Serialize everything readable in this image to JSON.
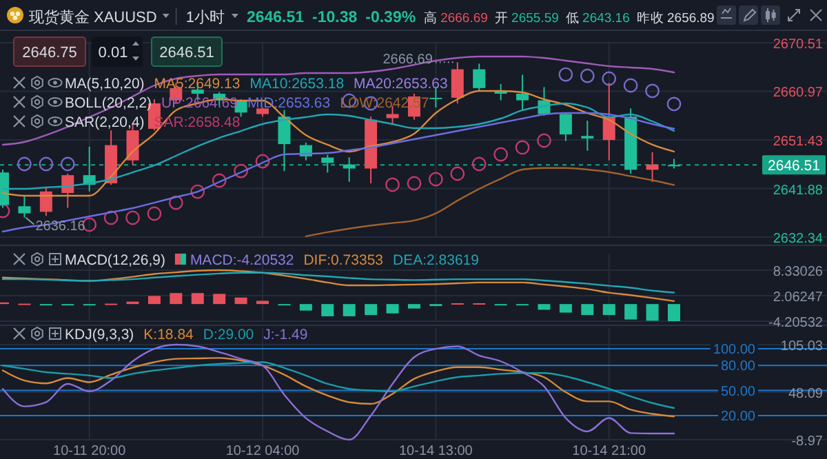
{
  "chart_data": [
    {
      "type": "candlestick",
      "title": "现货黄金",
      "subtitle": "XAUUSD",
      "annotations": [
        "1小时",
        "2646.51",
        "-10.38",
        "-0.39%",
        "高 2666.69",
        "开 2655.59",
        "低 2643.16",
        "昨收 2656.89",
        "2646.75",
        "0.01",
        "2646.51",
        "MA(5,10,20)",
        "MA20:2653.63",
        "BOLL(20,2,2)",
        "SAR(2,20,4)",
        {
          "text": "2666.69",
          "y": 2666.69
        },
        {
          "text": "2636.16",
          "y": 2636.16
        }
      ],
      "categories": [
        null,
        null,
        null,
        null,
        null,
        null,
        null,
        null,
        null,
        null,
        null,
        null,
        null,
        null,
        null,
        null,
        null,
        null,
        null,
        null,
        null,
        null,
        null,
        null,
        null,
        null,
        null,
        null,
        null,
        null,
        null,
        null
      ],
      "ohlc": [
        [
          2645.03,
          2645.56,
          2638.1,
          2638.63
        ],
        [
          2638.4,
          2640.5,
          2636.16,
          2637.0
        ],
        [
          2637.3,
          2642.1,
          2636.5,
          2641.3
        ],
        [
          2641.0,
          2644.8,
          2638.1,
          2644.5
        ],
        [
          2644.5,
          2650.1,
          2641.3,
          2642.6
        ],
        [
          2642.9,
          2653.3,
          2642.6,
          2650.4
        ],
        [
          2647.4,
          2654.6,
          2646.6,
          2653.3
        ],
        [
          2653.6,
          2659.4,
          2653.3,
          2658.6
        ],
        [
          2659.2,
          2662.6,
          2658.6,
          2661.6
        ],
        [
          2661.3,
          2662.6,
          2659.2,
          2660.5
        ],
        [
          2660.5,
          2660.8,
          2658.1,
          2659.2
        ],
        [
          2659.2,
          2659.4,
          2655.96,
          2656.8
        ],
        [
          2656.5,
          2657.8,
          2656.0,
          2657.6
        ],
        [
          2656.0,
          2657.3,
          2645.3,
          2650.6
        ],
        [
          2650.4,
          2650.9,
          2647.4,
          2648.2
        ],
        [
          2647.96,
          2648.5,
          2645.0,
          2646.9
        ],
        [
          2646.6,
          2648.0,
          2643.2,
          2645.8
        ],
        [
          2645.8,
          2656.0,
          2642.9,
          2655.4
        ],
        [
          2655.7,
          2658.1,
          2654.6,
          2656.5
        ],
        [
          2656.0,
          2660.5,
          2655.4,
          2659.96
        ],
        [
          2659.7,
          2661.8,
          2657.8,
          2659.5
        ],
        [
          2659.7,
          2666.69,
          2658.6,
          2665.3
        ],
        [
          2665.3,
          2666.4,
          2661.0,
          2661.6
        ],
        [
          2661.0,
          2662.4,
          2659.2,
          2660.5
        ],
        [
          2660.5,
          2664.2,
          2657.3,
          2659.2
        ],
        [
          2659.2,
          2661.8,
          2656.2,
          2656.5
        ],
        [
          2656.5,
          2656.8,
          2651.2,
          2652.5
        ],
        [
          2652.2,
          2655.2,
          2649.3,
          2651.7
        ],
        [
          2651.4,
          2662.6,
          2647.4,
          2656.0
        ],
        [
          2656.0,
          2657.6,
          2644.8,
          2645.56
        ],
        [
          2645.56,
          2649.0,
          2643.16,
          2646.6
        ],
        [
          2646.51,
          2647.7,
          2645.8,
          2646.51
        ]
      ],
      "colors": [
        "#1fbf9a",
        "#1fbf9a",
        "#e8505b",
        "#e8505b",
        "#1fbf9a",
        "#e8505b",
        "#e8505b",
        "#e8505b",
        "#e8505b",
        "#1fbf9a",
        "#1fbf9a",
        "#1fbf9a",
        "#e8505b",
        "#1fbf9a",
        "#1fbf9a",
        "#1fbf9a",
        "#1fbf9a",
        "#e8505b",
        "#e8505b",
        "#e8505b",
        "#1fbf9a",
        "#e8505b",
        "#1fbf9a",
        "#1fbf9a",
        "#1fbf9a",
        "#1fbf9a",
        "#1fbf9a",
        "#1fbf9a",
        "#e8505b",
        "#1fbf9a",
        "#e8505b",
        "#1fbf9a"
      ],
      "series": [
        {
          "name": "MA5:2649.13",
          "type": "line",
          "color": "#d98a3a",
          "values": [
            2641.0,
            2640.46,
            2640.46,
            2640.46,
            2640.46,
            2644.25,
            2649.12,
            2652.64,
            2657.25,
            2658.6,
            2659.41,
            2659.14,
            2659.14,
            2655.89,
            2652.37,
            2650.48,
            2649.12,
            2650.21,
            2651.02,
            2652.64,
            2656.7,
            2659.41,
            2661.04,
            2661.04,
            2660.77,
            2659.41,
            2658.33,
            2656.7,
            2655.35,
            2652.64,
            2650.48,
            2649.13
          ]
        },
        {
          "name": "MA10:2653.18",
          "type": "line",
          "color": "#22a6b3",
          "values": [
            2641.81,
            2641.81,
            2642.09,
            2642.36,
            2642.9,
            2643.71,
            2645.06,
            2646.42,
            2648.31,
            2650.2,
            2651.83,
            2653.18,
            2654.54,
            2655.35,
            2655.89,
            2656.43,
            2656.16,
            2655.35,
            2654.54,
            2653.73,
            2653.73,
            2653.99,
            2654.54,
            2655.62,
            2657.25,
            2658.06,
            2658.6,
            2657.79,
            2655.89,
            2656.43,
            2655.08,
            2653.18
          ]
        },
        {
          "name": "UP:2664.69",
          "type": "line",
          "color": "#a05bb8",
          "values": [
            2650.48,
            2651.02,
            2652.37,
            2653.99,
            2655.89,
            2657.79,
            2659.95,
            2662.12,
            2663.47,
            2664.01,
            2664.28,
            2664.28,
            2664.28,
            2664.28,
            2664.55,
            2664.55,
            2664.55,
            2664.82,
            2665.37,
            2666.18,
            2666.99,
            2667.53,
            2667.8,
            2667.8,
            2667.8,
            2667.53,
            2666.99,
            2666.45,
            2665.91,
            2665.64,
            2665.37,
            2664.69
          ]
        },
        {
          "name": "MID:2653.63",
          "type": "line",
          "color": "#6a6ee0",
          "values": [
            2633.42,
            2634.24,
            2634.78,
            2635.59,
            2636.4,
            2637.21,
            2638.02,
            2639.1,
            2640.19,
            2641.27,
            2643.17,
            2645.06,
            2646.96,
            2648.58,
            2648.72,
            2648.85,
            2649.39,
            2649.94,
            2650.75,
            2651.56,
            2652.37,
            2653.18,
            2653.99,
            2654.81,
            2655.62,
            2656.43,
            2656.7,
            2656.7,
            2656.43,
            2655.62,
            2654.54,
            2653.63
          ]
        },
        {
          "name": "LOW:2642.57",
          "type": "line",
          "color": "#a0622d",
          "values": [
            null,
            null,
            null,
            null,
            null,
            null,
            null,
            null,
            null,
            null,
            null,
            null,
            null,
            null,
            2632.5,
            2633.3,
            2634.0,
            2634.6,
            2635.1,
            2635.6,
            2637.0,
            2639.5,
            2641.8,
            2643.8,
            2645.6,
            2645.9,
            2645.9,
            2645.6,
            2645.1,
            2644.3,
            2643.5,
            2642.57
          ]
        },
        {
          "name": "SAR:2658.48",
          "type": "scatter",
          "marker": "circle",
          "color": "#c2396b",
          "values": [
            2637.48,
            null,
            null,
            null,
            2634.78,
            2636.13,
            2636.13,
            2636.94,
            2639.1,
            2641.27,
            2643.44,
            2645.33,
            2647.23,
            null,
            null,
            null,
            null,
            null,
            2642.63,
            2642.9,
            2643.71,
            2644.79,
            2646.69,
            2648.58,
            2649.94,
            2651.29,
            null,
            null,
            null,
            null,
            null,
            null
          ]
        },
        {
          "type": "scatter",
          "marker": "circle",
          "color": "#7b68c8",
          "values": [
            null,
            2646.69,
            2646.69,
            2646.69,
            null,
            null,
            null,
            null,
            null,
            null,
            null,
            null,
            null,
            null,
            null,
            null,
            2659.14,
            2658.6,
            null,
            null,
            null,
            null,
            null,
            null,
            null,
            null,
            2664.28,
            2664.01,
            2663.47,
            2662.12,
            2661.04,
            2658.48
          ]
        }
      ],
      "ylim": [
        2632.34,
        2670.51
      ],
      "yticks": [
        2670.51,
        2660.97,
        2651.43,
        2641.88,
        2632.34
      ],
      "ref_lines": [
        {
          "axis": "y",
          "value": 2646.51,
          "label": "2646.51",
          "color": "#17a589",
          "line_style": "dashed"
        }
      ],
      "grid": true,
      "legend": "top",
      "tick_labels": "y"
    },
    {
      "type": "bar",
      "title": "MACD(12,26,9)",
      "categories": [
        null,
        null,
        null,
        null,
        null,
        null,
        null,
        null,
        null,
        null,
        null,
        null,
        null,
        null,
        null,
        null,
        null,
        null,
        null,
        null,
        null,
        null,
        null,
        null,
        null,
        null,
        null,
        null,
        null,
        null,
        null,
        null
      ],
      "series": [
        {
          "name": "MACD:-4.20532",
          "type": "bar",
          "values": [
            0.4,
            0.1,
            -0.1,
            -0.1,
            -0.1,
            0.1,
            0.6,
            2.0,
            2.7,
            2.7,
            2.5,
            1.6,
            0.8,
            -0.2,
            -1.6,
            -3.0,
            -3.0,
            -2.7,
            -2.3,
            -1.1,
            -0.5,
            0.2,
            0.2,
            -0.2,
            -0.3,
            -1.4,
            -2.1,
            -2.7,
            -2.7,
            -3.8,
            -4.1,
            -4.20532
          ],
          "colors": [
            "#e8505b",
            "#e8505b",
            "#1fbf9a",
            "#1fbf9a",
            "#1fbf9a",
            "#e8505b",
            "#e8505b",
            "#e8505b",
            "#e8505b",
            "#e8505b",
            "#e8505b",
            "#e8505b",
            "#e8505b",
            "#1fbf9a",
            "#1fbf9a",
            "#1fbf9a",
            "#1fbf9a",
            "#1fbf9a",
            "#1fbf9a",
            "#1fbf9a",
            "#1fbf9a",
            "#e8505b",
            "#e8505b",
            "#1fbf9a",
            "#1fbf9a",
            "#1fbf9a",
            "#1fbf9a",
            "#1fbf9a",
            "#1fbf9a",
            "#1fbf9a",
            "#1fbf9a",
            "#1fbf9a"
          ]
        },
        {
          "name": "DIF:0.73353",
          "type": "line",
          "color": "#d98a3a",
          "values": [
            6.5,
            6.3,
            6.1,
            5.9,
            5.7,
            6.1,
            6.7,
            7.4,
            7.8,
            8.2,
            8.33,
            8.1,
            7.7,
            7.0,
            6.2,
            5.3,
            4.6,
            4.6,
            4.7,
            4.8,
            4.9,
            5.1,
            5.3,
            5.3,
            5.3,
            4.8,
            4.3,
            3.7,
            2.8,
            2.2,
            1.5,
            0.73353
          ]
        },
        {
          "name": "DEA:2.83619",
          "type": "line",
          "color": "#22a6b3",
          "values": [
            6.1,
            6.1,
            6.0,
            5.8,
            5.7,
            5.9,
            6.1,
            6.5,
            6.9,
            7.2,
            7.5,
            7.7,
            7.7,
            7.5,
            7.1,
            6.8,
            6.4,
            6.1,
            6.0,
            5.9,
            6.0,
            6.1,
            6.1,
            6.1,
            6.1,
            5.8,
            5.4,
            5.0,
            4.5,
            4.0,
            3.3,
            2.83619
          ]
        }
      ],
      "ylim": [
        -4.20532,
        8.33026
      ],
      "yticks": [
        8.33026,
        2.06247,
        -4.20532
      ],
      "grid": true,
      "legend": "top left",
      "tick_labels": "y"
    },
    {
      "type": "line",
      "title": "KDJ(9,3,3)",
      "categories": [
        null,
        null,
        null,
        null,
        "10-11 20:00",
        null,
        null,
        null,
        null,
        null,
        null,
        null,
        "10-12 04:00",
        null,
        null,
        null,
        null,
        null,
        null,
        null,
        "10-14 13:00",
        null,
        null,
        null,
        null,
        null,
        null,
        null,
        "10-14 21:00",
        null,
        null,
        null
      ],
      "series": [
        {
          "name": "K:18.84",
          "color": "#d98a3a",
          "values": [
            74,
            62,
            58.6,
            65,
            60,
            69,
            77.5,
            84,
            88,
            88.5,
            89,
            86,
            80,
            69,
            55,
            44,
            36,
            34,
            46,
            64,
            73,
            78,
            78,
            75,
            72,
            66,
            48,
            37,
            37,
            27,
            22,
            18.84
          ]
        },
        {
          "name": "D:29.00",
          "color": "#1a9ca8",
          "values": [
            80,
            76,
            72,
            70,
            68,
            65,
            70,
            74,
            77,
            80,
            82,
            83,
            84,
            77,
            68,
            58,
            52,
            50,
            49,
            55,
            61,
            66,
            68,
            70,
            71,
            71,
            67,
            60,
            52,
            43,
            35,
            29.0
          ]
        },
        {
          "name": "J:-1.49",
          "color": "#8c6fd6",
          "values": [
            52,
            31,
            36,
            58,
            49,
            62,
            85,
            100,
            105.03,
            103,
            96,
            88,
            80,
            45,
            17,
            1,
            -8.97,
            20,
            58,
            90,
            100,
            103,
            92,
            85,
            72,
            55,
            17,
            1,
            17,
            -1,
            -1.5,
            -1.49
          ]
        }
      ],
      "ylim": [
        -8.97,
        105.03
      ],
      "yticks": [
        105.03,
        48.09,
        -8.97
      ],
      "ref_lines": [
        {
          "axis": "y",
          "value": 100,
          "label": "100.00",
          "color": "#1f78c8"
        },
        {
          "axis": "y",
          "value": 80,
          "label": "80.00",
          "color": "#1f78c8"
        },
        {
          "axis": "y",
          "value": 50,
          "label": "50.00",
          "color": "#1f78c8"
        },
        {
          "axis": "y",
          "value": 20,
          "label": "20.00",
          "color": "#1f78c8"
        }
      ],
      "grid": true,
      "legend": "top"
    }
  ]
}
